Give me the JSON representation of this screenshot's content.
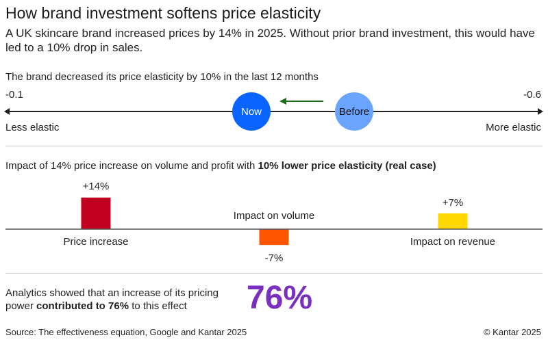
{
  "title": "How brand investment softens price elasticity",
  "subtitle": "A UK skincare brand increased prices by 14% in 2025. Without prior brand investment, this would have led to a 10% drop in sales.",
  "elasticity": {
    "heading": "The brand decreased its price elasticity by 10% in the last 12 months",
    "left_value": "-0.1",
    "right_value": "-0.6",
    "left_label": "Less elastic",
    "right_label": "More elastic",
    "now_label": "Now",
    "before_label": "Before",
    "colors": {
      "now": "#0a64ff",
      "before": "#6aa4ff",
      "arrow": "#1a6e1a"
    }
  },
  "impact_heading": {
    "normal": "Impact of 14% price increase on volume and profit with ",
    "bold": "10% lower price elasticity (real case)"
  },
  "chart_data": {
    "type": "bar",
    "categories": [
      "Price increase",
      "Impact on volume",
      "Impact on revenue"
    ],
    "values": [
      14,
      -7,
      7
    ],
    "data_labels": [
      "+14%",
      "-7%",
      "+7%"
    ],
    "colors": [
      "#c0001e",
      "#ff5500",
      "#ffd800"
    ],
    "unit": "%",
    "grid": false
  },
  "analytics": {
    "line1": "Analytics showed that an increase of its pricing",
    "line2_pre": "power ",
    "line2_bold": "contributed to 76%",
    "line2_post": " to this effect",
    "big_value": "76%"
  },
  "footer": {
    "source": "Source: The effectiveness equation, Google and Kantar 2025",
    "copyright": "© Kantar 2025"
  }
}
